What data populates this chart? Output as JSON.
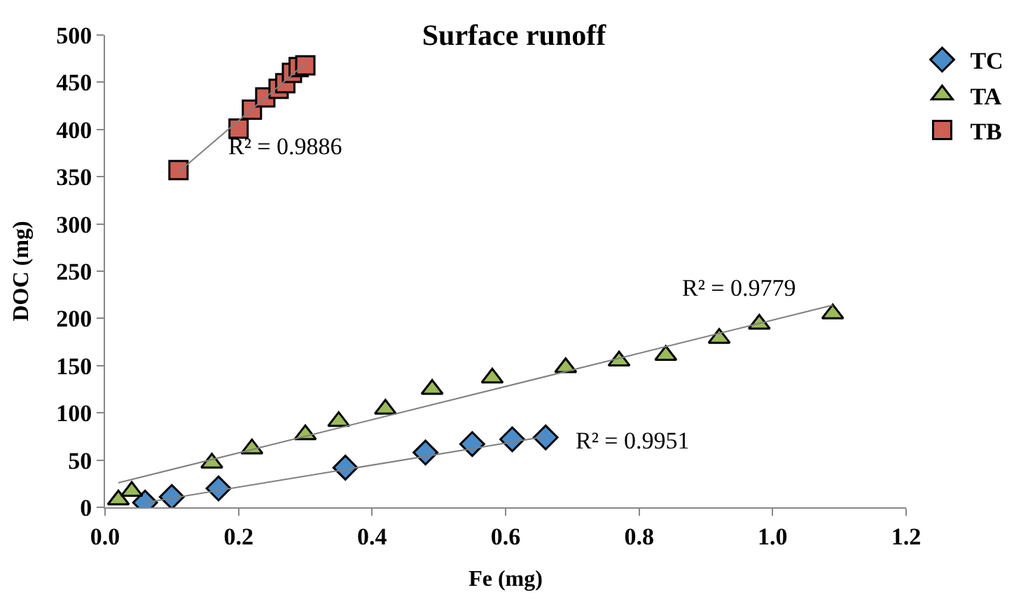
{
  "chart_data": {
    "type": "scatter",
    "title": "Surface runoff",
    "xlabel": "Fe (mg)",
    "ylabel": "DOC (mg)",
    "xlim": [
      0,
      1.2
    ],
    "xticks": [
      {
        "value": 0,
        "label": "0.0"
      },
      0.2,
      0.4,
      0.6,
      0.8,
      {
        "value": 1,
        "label": "1.0"
      },
      1.2
    ],
    "ylim": [
      0,
      500
    ],
    "yticks": [
      0,
      50,
      100,
      150,
      200,
      250,
      300,
      350,
      400,
      450,
      500
    ],
    "legend": "top right",
    "series": [
      {
        "name": "TC",
        "color": "#4a8cca",
        "marker": "diamond",
        "x": [
          0.06,
          0.1,
          0.17,
          0.36,
          0.48,
          0.55,
          0.61,
          0.66
        ],
        "values": [
          5,
          11,
          20,
          42,
          58,
          67,
          72,
          74
        ]
      },
      {
        "name": "TA",
        "color": "#9bbb59",
        "marker": "triangle",
        "x": [
          0.02,
          0.04,
          0.16,
          0.22,
          0.3,
          0.35,
          0.42,
          0.49,
          0.58,
          0.69,
          0.77,
          0.84,
          0.92,
          0.98,
          1.09
        ],
        "values": [
          8,
          17,
          47,
          62,
          77,
          91,
          104,
          125,
          137,
          148,
          155,
          161,
          179,
          194,
          205
        ]
      },
      {
        "name": "TB",
        "color": "#cd5f55",
        "marker": "square",
        "x": [
          0.11,
          0.2,
          0.22,
          0.24,
          0.26,
          0.27,
          0.28,
          0.29,
          0.3
        ],
        "values": [
          357,
          401,
          421,
          434,
          443,
          449,
          460,
          466,
          468
        ]
      },
      {
        "type": "line",
        "color": "#808080",
        "marker": "none",
        "x": [
          0.06,
          0.66
        ],
        "values": [
          5,
          75
        ]
      },
      {
        "type": "line",
        "color": "#808080",
        "marker": "none",
        "x": [
          0.02,
          1.09
        ],
        "values": [
          26,
          214
        ]
      },
      {
        "type": "line",
        "color": "#808080",
        "marker": "none",
        "x": [
          0.11,
          0.3
        ],
        "values": [
          355,
          470
        ]
      }
    ],
    "annotations": [
      "R² = 0.9886",
      "R² = 0.9779",
      "R² = 0.9951"
    ]
  }
}
